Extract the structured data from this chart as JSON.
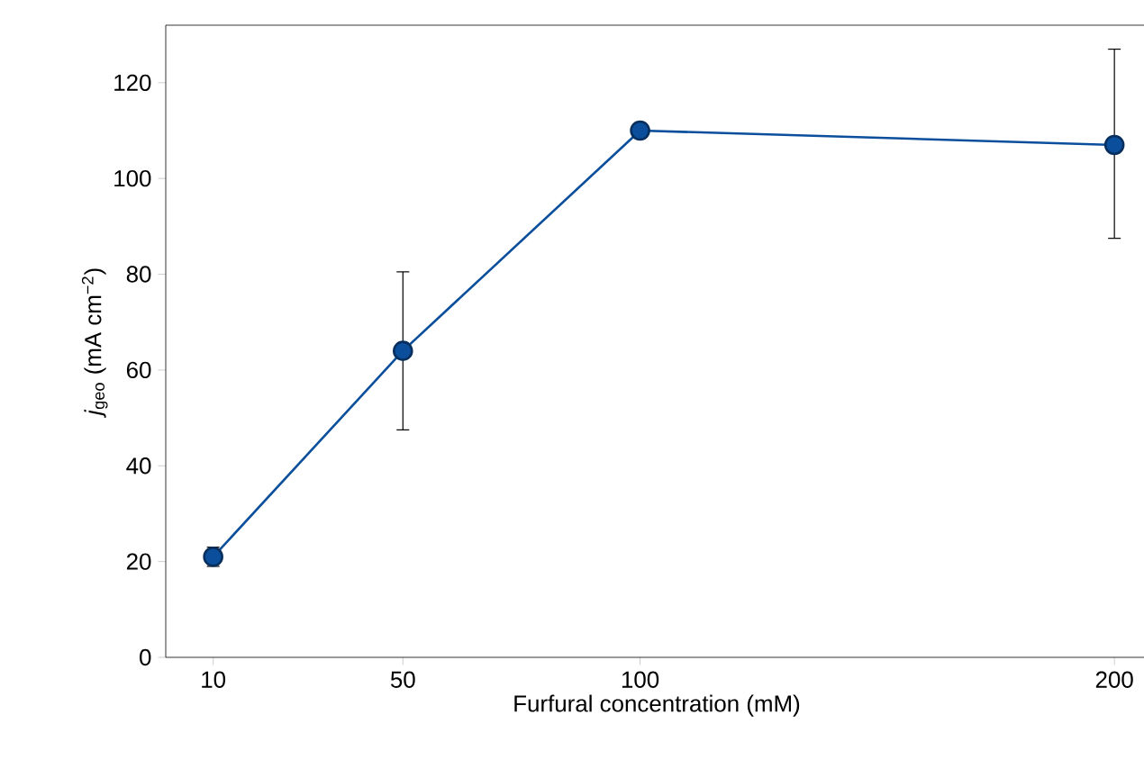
{
  "chart_data": {
    "type": "line",
    "xlabel": "Furfural concentration (mM)",
    "ylabel": "*j*$_{geo}$ (mA cm$^{−2}$)",
    "x": [
      10,
      50,
      100,
      200
    ],
    "series": [
      {
        "color": "#0b4f9c",
        "values": [
          21,
          64,
          110,
          107
        ],
        "errors": [
          [
            19,
            23
          ],
          [
            47.5,
            80.5
          ],
          null,
          [
            87.5,
            127
          ]
        ]
      }
    ],
    "xlim": [
      0,
      207
    ],
    "ylim": [
      0,
      132
    ],
    "xticks": [
      10,
      50,
      100,
      200
    ],
    "yticks": [
      0,
      20,
      40,
      60,
      80,
      100,
      120
    ],
    "marker": "circle",
    "line_style": "solid",
    "grid": false
  }
}
